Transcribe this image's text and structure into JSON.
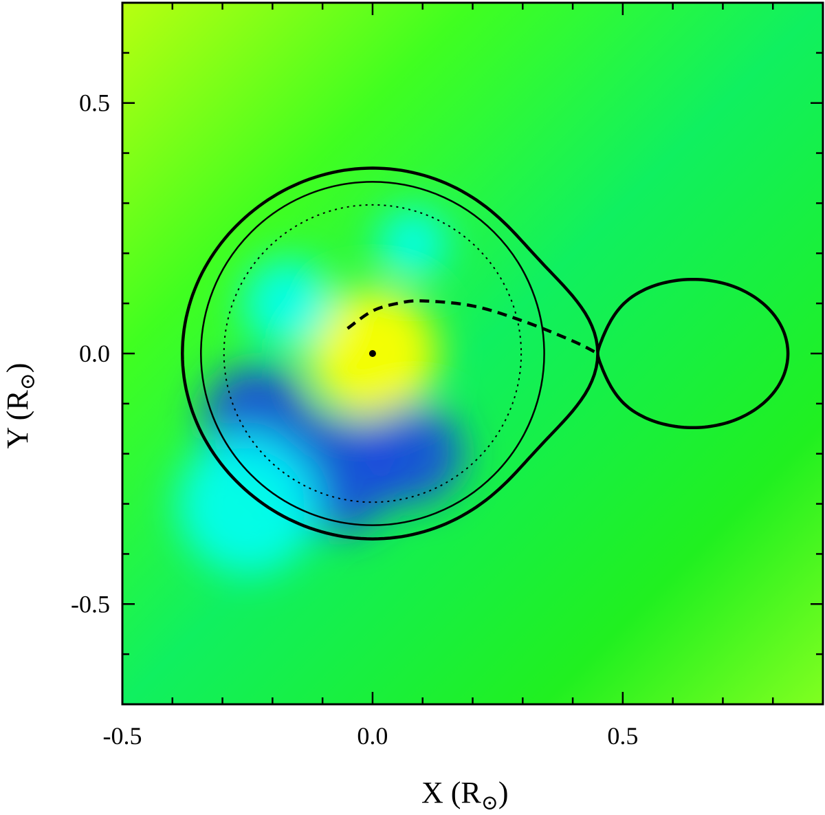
{
  "chart_data": {
    "type": "heatmap",
    "title": "",
    "xlabel": "X (R",
    "ylabel": "Y (R",
    "unit_symbol": "⊙",
    "xlim": [
      -0.5,
      0.9
    ],
    "ylim": [
      -0.7,
      0.7
    ],
    "x_ticks_major": [
      -0.5,
      0.0,
      0.5
    ],
    "x_tick_labels": [
      "-0.5",
      "0.0",
      "0.5"
    ],
    "y_ticks_major": [
      -0.5,
      0.0,
      0.5
    ],
    "y_tick_labels": [
      "-0.5",
      "0.0",
      "0.5"
    ],
    "minor_tick_step": 0.1,
    "grid": false,
    "colormap": {
      "low": "#1a3fe6",
      "mid_low": "#00ffff",
      "mid": "#00ee22",
      "high": "#ffff00"
    },
    "color_blobs": [
      {
        "x": 0.0,
        "y": 0.0,
        "radius": 0.13,
        "level": "high"
      },
      {
        "x": -0.07,
        "y": -0.24,
        "radius": 0.12,
        "level": "low"
      },
      {
        "x": -0.23,
        "y": -0.13,
        "radius": 0.11,
        "level": "low"
      },
      {
        "x": -0.17,
        "y": 0.1,
        "radius": 0.09,
        "level": "mid_low"
      },
      {
        "x": 0.08,
        "y": 0.22,
        "radius": 0.07,
        "level": "mid_low"
      },
      {
        "x": 0.08,
        "y": -0.2,
        "radius": 0.1,
        "level": "low"
      },
      {
        "x": -0.25,
        "y": -0.3,
        "radius": 0.14,
        "level": "mid_low"
      }
    ],
    "roche_lobe": {
      "inner_lagrange_x": 0.45,
      "primary_extent_x": [
        -0.38,
        0.45
      ],
      "primary_max_y": 0.367,
      "secondary_extent_x": [
        0.45,
        0.83
      ],
      "secondary_max_y": 0.148,
      "style": "thick-solid"
    },
    "circles": [
      {
        "cx": 0.0,
        "cy": 0.0,
        "r": 0.343,
        "style": "solid"
      },
      {
        "cx": 0.0,
        "cy": 0.0,
        "r": 0.297,
        "style": "dotted"
      }
    ],
    "stream": {
      "points": [
        [
          -0.05,
          0.05
        ],
        [
          0.0,
          0.085
        ],
        [
          0.05,
          0.1
        ],
        [
          0.1,
          0.105
        ],
        [
          0.2,
          0.095
        ],
        [
          0.3,
          0.065
        ],
        [
          0.4,
          0.025
        ],
        [
          0.45,
          0.0
        ]
      ],
      "style": "dashed"
    },
    "center_point": {
      "x": 0.0,
      "y": 0.0
    }
  }
}
